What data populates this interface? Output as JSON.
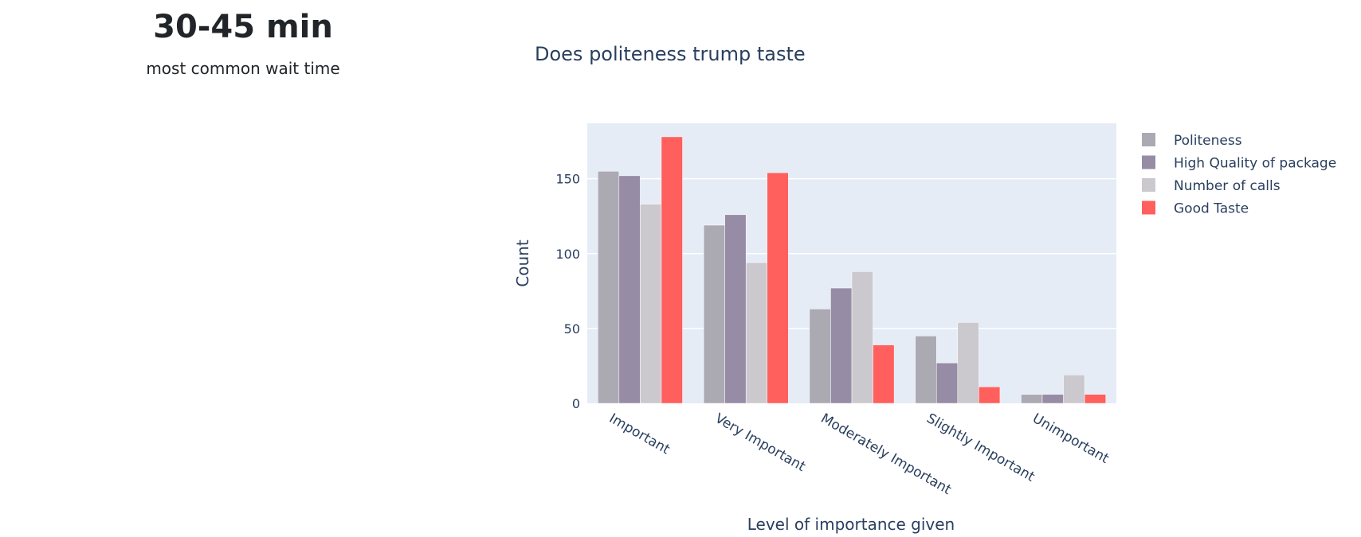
{
  "kpi": {
    "value": "30-45 min",
    "label": "most common wait time"
  },
  "chart_data": {
    "type": "bar",
    "title": "Does politeness trump taste",
    "xlabel": "Level of importance given",
    "ylabel": "Count",
    "ylim": [
      0,
      187
    ],
    "yticks": [
      "0",
      "50",
      "100",
      "150"
    ],
    "grid": true,
    "legend_position": "right",
    "categories": [
      "Important",
      "Very Important",
      "Moderately Important",
      "Slightly Important",
      "Unimportant"
    ],
    "series": [
      {
        "name": "Politeness",
        "color": "#abaab3",
        "values": [
          155,
          119,
          63,
          45,
          6
        ]
      },
      {
        "name": "High Quality of package",
        "color": "#978ca5",
        "values": [
          152,
          126,
          77,
          27,
          6
        ]
      },
      {
        "name": "Number of calls",
        "color": "#cbc8ce",
        "values": [
          133,
          94,
          88,
          54,
          19
        ]
      },
      {
        "name": "Good Taste",
        "color": "#ff5f5d",
        "values": [
          178,
          154,
          39,
          11,
          6
        ]
      }
    ],
    "plot_bgcolor": "#e5ecf6"
  }
}
